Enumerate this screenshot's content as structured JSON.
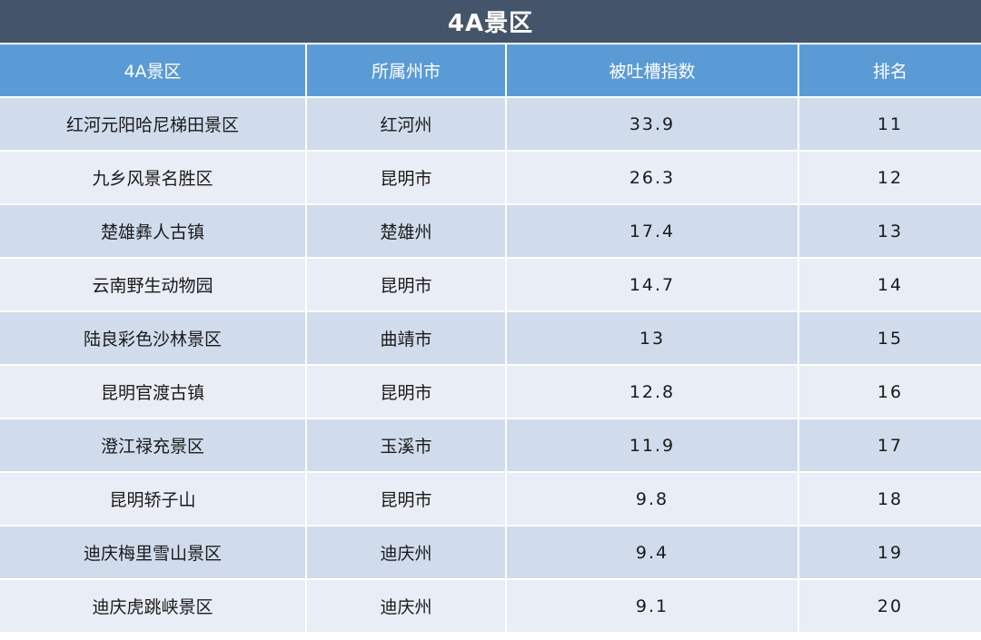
{
  "title": "4A景区",
  "headers": [
    "4A景区",
    "所属州市",
    "被吐槽指数",
    "排名"
  ],
  "rows": [
    {
      "name": "红河元阳哈尼梯田景区",
      "city": "红河州",
      "index": "33.9",
      "rank": "11"
    },
    {
      "name": "九乡风景名胜区",
      "city": "昆明市",
      "index": "26.3",
      "rank": "12"
    },
    {
      "name": "楚雄彝人古镇",
      "city": "楚雄州",
      "index": "17.4",
      "rank": "13"
    },
    {
      "name": "云南野生动物园",
      "city": "昆明市",
      "index": "14.7",
      "rank": "14"
    },
    {
      "name": "陆良彩色沙林景区",
      "city": "曲靖市",
      "index": "13",
      "rank": "15"
    },
    {
      "name": "昆明官渡古镇",
      "city": "昆明市",
      "index": "12.8",
      "rank": "16"
    },
    {
      "name": "澄江禄充景区",
      "city": "玉溪市",
      "index": "11.9",
      "rank": "17"
    },
    {
      "name": "昆明轿子山",
      "city": "昆明市",
      "index": "9.8",
      "rank": "18"
    },
    {
      "name": "迪庆梅里雪山景区",
      "city": "迪庆州",
      "index": "9.4",
      "rank": "19"
    },
    {
      "name": "迪庆虎跳峡景区",
      "city": "迪庆州",
      "index": "9.1",
      "rank": "20"
    }
  ],
  "colors": {
    "title_bg": "#44546a",
    "header_bg": "#5b9bd5",
    "row_odd": "#d0dcec",
    "row_even": "#e9edf5"
  }
}
